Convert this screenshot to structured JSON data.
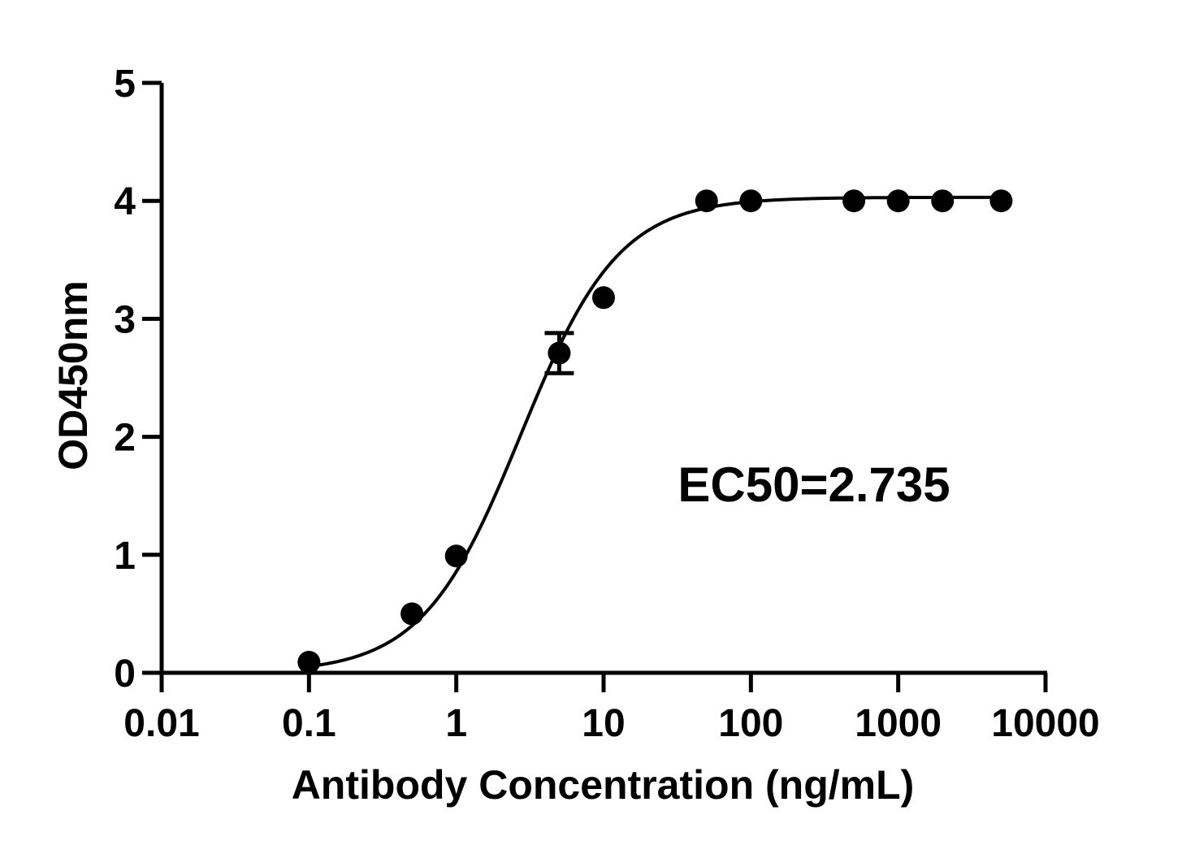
{
  "chart_data": {
    "type": "scatter",
    "x_scale": "log",
    "xlim": [
      0.01,
      10000
    ],
    "ylim": [
      0,
      5
    ],
    "x_ticks": [
      0.01,
      0.1,
      1,
      10,
      100,
      1000,
      10000
    ],
    "x_tick_labels": [
      "0.01",
      "0.1",
      "1",
      "10",
      "100",
      "1000",
      "10000"
    ],
    "y_ticks": [
      0,
      1,
      2,
      3,
      4,
      5
    ],
    "y_tick_labels": [
      "0",
      "1",
      "2",
      "3",
      "4",
      "5"
    ],
    "xlabel": "Antibody Concentration (ng/mL)",
    "ylabel": "OD450nm",
    "annotation": "EC50=2.735",
    "grid": false,
    "points": [
      {
        "x": 0.1,
        "y": 0.09
      },
      {
        "x": 0.5,
        "y": 0.5
      },
      {
        "x": 1,
        "y": 0.99
      },
      {
        "x": 5,
        "y": 2.71,
        "err": 0.17
      },
      {
        "x": 10,
        "y": 3.18
      },
      {
        "x": 50,
        "y": 4.0
      },
      {
        "x": 100,
        "y": 4.0
      },
      {
        "x": 500,
        "y": 4.0
      },
      {
        "x": 1000,
        "y": 4.0
      },
      {
        "x": 2000,
        "y": 4.0
      },
      {
        "x": 5000,
        "y": 4.0
      }
    ],
    "fit": {
      "model": "4PL",
      "bottom": 0.0,
      "top": 4.03,
      "ec50": 2.735,
      "hill": 1.3
    }
  }
}
